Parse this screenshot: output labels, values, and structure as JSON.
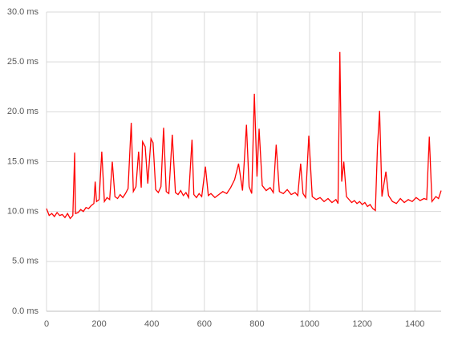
{
  "chart_data": {
    "type": "line",
    "x": [
      0,
      10,
      20,
      30,
      40,
      50,
      60,
      70,
      80,
      90,
      100,
      107,
      110,
      120,
      130,
      140,
      150,
      160,
      170,
      180,
      185,
      190,
      200,
      210,
      220,
      230,
      240,
      250,
      260,
      270,
      280,
      290,
      300,
      310,
      322,
      330,
      340,
      350,
      360,
      365,
      375,
      385,
      397,
      405,
      415,
      425,
      435,
      445,
      455,
      465,
      478,
      490,
      500,
      510,
      520,
      530,
      540,
      553,
      560,
      570,
      580,
      590,
      604,
      615,
      625,
      640,
      655,
      670,
      685,
      700,
      715,
      730,
      745,
      760,
      770,
      780,
      790,
      800,
      808,
      820,
      835,
      850,
      862,
      873,
      885,
      900,
      915,
      930,
      945,
      955,
      966,
      975,
      985,
      997,
      1010,
      1025,
      1040,
      1055,
      1070,
      1085,
      1100,
      1108,
      1115,
      1122,
      1130,
      1140,
      1150,
      1160,
      1170,
      1180,
      1190,
      1200,
      1210,
      1220,
      1230,
      1240,
      1250,
      1258,
      1266,
      1275,
      1290,
      1300,
      1315,
      1330,
      1345,
      1360,
      1375,
      1390,
      1405,
      1420,
      1435,
      1445,
      1455,
      1465,
      1480,
      1490,
      1500
    ],
    "series": [
      {
        "color": "#ff0000",
        "values": [
          10.3,
          9.6,
          9.8,
          9.5,
          9.9,
          9.6,
          9.7,
          9.4,
          9.8,
          9.3,
          9.6,
          15.9,
          9.8,
          9.9,
          10.2,
          10.0,
          10.4,
          10.3,
          10.6,
          10.8,
          13.0,
          11.0,
          11.2,
          16.0,
          11.0,
          11.4,
          11.2,
          15.0,
          11.5,
          11.3,
          11.7,
          11.4,
          11.8,
          12.3,
          18.9,
          12.0,
          12.5,
          16.0,
          12.4,
          17.0,
          16.5,
          12.8,
          17.3,
          16.9,
          12.2,
          11.9,
          12.5,
          18.4,
          12.0,
          11.8,
          17.7,
          11.9,
          11.7,
          12.1,
          11.6,
          11.9,
          11.4,
          17.2,
          11.7,
          11.4,
          11.8,
          11.5,
          14.5,
          11.6,
          11.8,
          11.4,
          11.7,
          12.0,
          11.8,
          12.4,
          13.2,
          14.8,
          12.1,
          18.7,
          12.5,
          11.8,
          21.8,
          13.5,
          18.3,
          12.6,
          12.1,
          12.4,
          11.9,
          16.7,
          12.0,
          11.8,
          12.2,
          11.7,
          11.9,
          11.6,
          14.8,
          11.8,
          11.4,
          17.6,
          11.5,
          11.2,
          11.4,
          11.0,
          11.3,
          10.9,
          11.2,
          10.8,
          26.0,
          13.0,
          15.0,
          11.5,
          11.2,
          10.9,
          11.1,
          10.8,
          11.0,
          10.7,
          10.9,
          10.5,
          10.7,
          10.3,
          10.1,
          16.5,
          20.1,
          11.5,
          14.0,
          11.6,
          11.0,
          10.8,
          11.3,
          10.9,
          11.2,
          11.0,
          11.4,
          11.1,
          11.3,
          11.2,
          17.5,
          11.0,
          11.5,
          11.3,
          12.1
        ]
      }
    ],
    "xlim": [
      0,
      1500
    ],
    "xticks": [
      0,
      200,
      400,
      600,
      800,
      1000,
      1200,
      1400
    ],
    "ylim": [
      0,
      30
    ],
    "yticks": [
      {
        "value": 0,
        "label": "0.0 ms"
      },
      {
        "value": 5,
        "label": "5.0 ms"
      },
      {
        "value": 10,
        "label": "10.0 ms"
      },
      {
        "value": 15,
        "label": "15.0 ms"
      },
      {
        "value": 20,
        "label": "20.0 ms"
      },
      {
        "value": 25,
        "label": "25.0 ms"
      },
      {
        "value": 30,
        "label": "30.0 ms"
      }
    ],
    "grid": true
  }
}
